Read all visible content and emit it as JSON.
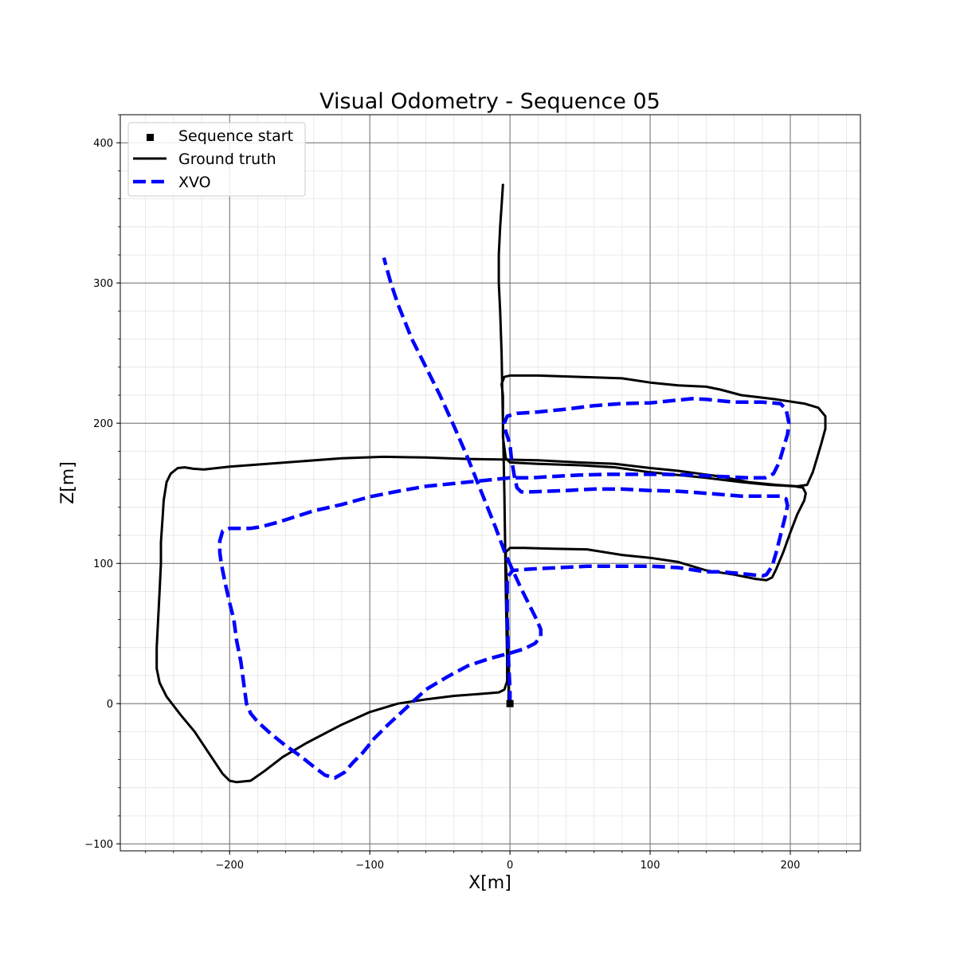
{
  "chart_data": {
    "type": "line",
    "title": "Visual Odometry - Sequence 05",
    "xlabel": "X[m]",
    "ylabel": "Z[m]",
    "xlim": [
      -278,
      250
    ],
    "ylim": [
      -105,
      420
    ],
    "x_ticks": [
      -200,
      -100,
      0,
      100,
      200
    ],
    "y_ticks": [
      -100,
      0,
      100,
      200,
      300,
      400
    ],
    "x_tick_labels": [
      "−200",
      "−100",
      "0",
      "100",
      "200"
    ],
    "y_tick_labels": [
      "−100",
      "0",
      "100",
      "200",
      "300",
      "400"
    ],
    "x_minor_step": 20,
    "y_minor_step": 20,
    "grid": "major and minor",
    "legend_position": "top-left",
    "colors": {
      "ground_truth": "#000000",
      "xvo": "#0000ff",
      "start": "#000000"
    },
    "start_point": {
      "name": "Sequence start",
      "x": 0,
      "y": 0
    },
    "series": [
      {
        "name": "Ground truth",
        "style": "solid",
        "points": [
          [
            0,
            0
          ],
          [
            -1,
            3
          ],
          [
            -1,
            30
          ],
          [
            -2,
            60
          ],
          [
            -2,
            85
          ],
          [
            -3,
            100
          ],
          [
            -3,
            108
          ],
          [
            0,
            111
          ],
          [
            10,
            111
          ],
          [
            30,
            110.5
          ],
          [
            55,
            110
          ],
          [
            80,
            106
          ],
          [
            100,
            104
          ],
          [
            120,
            101
          ],
          [
            140,
            95
          ],
          [
            160,
            92
          ],
          [
            175,
            89
          ],
          [
            183,
            88
          ],
          [
            187,
            90
          ],
          [
            190,
            96
          ],
          [
            195,
            108
          ],
          [
            200,
            122
          ],
          [
            205,
            135
          ],
          [
            210,
            145
          ],
          [
            211,
            150
          ],
          [
            209,
            154
          ],
          [
            203,
            155
          ],
          [
            185,
            156
          ],
          [
            165,
            158
          ],
          [
            140,
            161
          ],
          [
            120,
            163
          ],
          [
            100,
            165
          ],
          [
            75,
            168.5
          ],
          [
            50,
            170
          ],
          [
            20,
            171
          ],
          [
            0,
            172
          ],
          [
            -3,
            175
          ],
          [
            -5,
            190
          ],
          [
            -5,
            200
          ],
          [
            -5,
            210
          ],
          [
            -5,
            220
          ],
          [
            -6,
            228
          ],
          [
            -4,
            233
          ],
          [
            0,
            234
          ],
          [
            20,
            234
          ],
          [
            50,
            233
          ],
          [
            80,
            232
          ],
          [
            100,
            229
          ],
          [
            120,
            227
          ],
          [
            140,
            226
          ],
          [
            150,
            224
          ],
          [
            165,
            220
          ],
          [
            190,
            217
          ],
          [
            210,
            214
          ],
          [
            220,
            211
          ],
          [
            225,
            205
          ],
          [
            225,
            196
          ],
          [
            222,
            185
          ],
          [
            219,
            175
          ],
          [
            216,
            165
          ],
          [
            212,
            156
          ],
          [
            205,
            155
          ],
          [
            190,
            156
          ],
          [
            170,
            158
          ],
          [
            150,
            162
          ],
          [
            120,
            166
          ],
          [
            100,
            168
          ],
          [
            75,
            171
          ],
          [
            50,
            172
          ],
          [
            20,
            173.5
          ],
          [
            0,
            174
          ],
          [
            -30,
            174.5
          ],
          [
            -60,
            175.5
          ],
          [
            -90,
            176
          ],
          [
            -120,
            175
          ],
          [
            -160,
            172
          ],
          [
            -200,
            169
          ],
          [
            -218,
            167
          ],
          [
            -226,
            167.5
          ],
          [
            -232,
            168.5
          ],
          [
            -237,
            168
          ],
          [
            -242,
            164
          ],
          [
            -245,
            158
          ],
          [
            -247,
            145
          ],
          [
            -248,
            130
          ],
          [
            -249,
            115
          ],
          [
            -249,
            100
          ],
          [
            -250,
            80
          ],
          [
            -251,
            60
          ],
          [
            -252,
            40
          ],
          [
            -252,
            25
          ],
          [
            -250,
            15
          ],
          [
            -245,
            5
          ],
          [
            -235,
            -8
          ],
          [
            -225,
            -20
          ],
          [
            -215,
            -35
          ],
          [
            -205,
            -50
          ],
          [
            -200,
            -55
          ],
          [
            -195,
            -56
          ],
          [
            -185,
            -55
          ],
          [
            -175,
            -48
          ],
          [
            -162,
            -38
          ],
          [
            -145,
            -28
          ],
          [
            -120,
            -15
          ],
          [
            -100,
            -6
          ],
          [
            -80,
            0
          ],
          [
            -60,
            3
          ],
          [
            -40,
            5.5
          ],
          [
            -20,
            7
          ],
          [
            -8,
            8
          ],
          [
            -4,
            10
          ],
          [
            -2,
            16
          ],
          [
            -2,
            30
          ],
          [
            -3,
            80
          ],
          [
            -4,
            150
          ],
          [
            -5,
            200
          ],
          [
            -6,
            250
          ],
          [
            -7,
            280
          ],
          [
            -8,
            300
          ],
          [
            -8,
            320
          ],
          [
            -7,
            340
          ],
          [
            -6,
            355
          ],
          [
            -5,
            370
          ]
        ]
      },
      {
        "name": "XVO",
        "style": "dashed",
        "points": [
          [
            0,
            0
          ],
          [
            0,
            10
          ],
          [
            -1,
            30
          ],
          [
            -2,
            60
          ],
          [
            -2,
            80
          ],
          [
            -2,
            90
          ],
          [
            2,
            95
          ],
          [
            15,
            96
          ],
          [
            35,
            97
          ],
          [
            55,
            98
          ],
          [
            80,
            98
          ],
          [
            100,
            98
          ],
          [
            120,
            97
          ],
          [
            140,
            94
          ],
          [
            150,
            94
          ],
          [
            162,
            93
          ],
          [
            172,
            92
          ],
          [
            180,
            91
          ],
          [
            183,
            92
          ],
          [
            187,
            98
          ],
          [
            190,
            108
          ],
          [
            193,
            120
          ],
          [
            196,
            132
          ],
          [
            198,
            141
          ],
          [
            197,
            146
          ],
          [
            193,
            148
          ],
          [
            185,
            148
          ],
          [
            165,
            148
          ],
          [
            140,
            150
          ],
          [
            120,
            151.5
          ],
          [
            100,
            152
          ],
          [
            80,
            153
          ],
          [
            60,
            153
          ],
          [
            40,
            152
          ],
          [
            15,
            151
          ],
          [
            8,
            151
          ],
          [
            5,
            154
          ],
          [
            3,
            163
          ],
          [
            1,
            175
          ],
          [
            0,
            185
          ],
          [
            -3,
            194
          ],
          [
            -4,
            200
          ],
          [
            -2,
            205
          ],
          [
            5,
            207
          ],
          [
            20,
            208
          ],
          [
            40,
            210
          ],
          [
            60,
            212.5
          ],
          [
            80,
            214
          ],
          [
            100,
            214.5
          ],
          [
            120,
            216.5
          ],
          [
            130,
            217.5
          ],
          [
            140,
            217
          ],
          [
            160,
            215
          ],
          [
            180,
            215
          ],
          [
            193,
            214
          ],
          [
            197,
            210
          ],
          [
            199,
            200
          ],
          [
            198,
            192
          ],
          [
            195,
            182
          ],
          [
            192,
            172
          ],
          [
            188,
            164
          ],
          [
            182,
            161
          ],
          [
            170,
            161
          ],
          [
            150,
            162
          ],
          [
            130,
            163
          ],
          [
            110,
            163.5
          ],
          [
            90,
            163.5
          ],
          [
            70,
            163.5
          ],
          [
            50,
            163
          ],
          [
            30,
            162
          ],
          [
            15,
            161
          ],
          [
            0,
            161
          ],
          [
            -20,
            159
          ],
          [
            -40,
            157
          ],
          [
            -60,
            155
          ],
          [
            -80,
            151.5
          ],
          [
            -100,
            147.5
          ],
          [
            -120,
            142
          ],
          [
            -140,
            137.5
          ],
          [
            -165,
            129.5
          ],
          [
            -178,
            126
          ],
          [
            -185,
            125
          ],
          [
            -200,
            125
          ],
          [
            -205,
            123
          ],
          [
            -207,
            116
          ],
          [
            -207,
            108
          ],
          [
            -206,
            100
          ],
          [
            -203,
            85
          ],
          [
            -200,
            72
          ],
          [
            -197,
            60
          ],
          [
            -195,
            45
          ],
          [
            -192,
            30
          ],
          [
            -190,
            15
          ],
          [
            -188,
            0
          ],
          [
            -185,
            -7
          ],
          [
            -180,
            -13
          ],
          [
            -170,
            -22
          ],
          [
            -160,
            -30
          ],
          [
            -150,
            -37
          ],
          [
            -140,
            -45
          ],
          [
            -132,
            -51
          ],
          [
            -125,
            -53
          ],
          [
            -118,
            -49
          ],
          [
            -112,
            -42
          ],
          [
            -105,
            -35
          ],
          [
            -97,
            -25
          ],
          [
            -87,
            -15
          ],
          [
            -75,
            -4
          ],
          [
            -60,
            10
          ],
          [
            -45,
            19
          ],
          [
            -30,
            27
          ],
          [
            -15,
            32
          ],
          [
            0,
            36
          ],
          [
            10,
            39
          ],
          [
            18,
            43
          ],
          [
            22,
            48
          ],
          [
            22,
            53
          ],
          [
            18,
            62
          ],
          [
            13,
            72
          ],
          [
            8,
            82
          ],
          [
            2,
            95
          ],
          [
            -3,
            106
          ],
          [
            -10,
            125
          ],
          [
            -20,
            150
          ],
          [
            -30,
            175
          ],
          [
            -40,
            198
          ],
          [
            -50,
            220
          ],
          [
            -60,
            240
          ],
          [
            -70,
            260
          ],
          [
            -80,
            285
          ],
          [
            -85,
            300
          ],
          [
            -90,
            318
          ]
        ]
      }
    ]
  }
}
